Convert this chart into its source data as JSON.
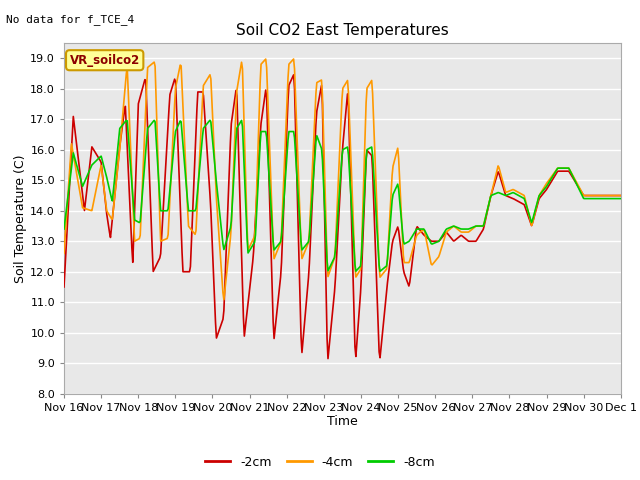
{
  "title": "Soil CO2 East Temperatures",
  "top_left_note": "No data for f_TCE_4",
  "xlabel": "Time",
  "ylabel": "Soil Temperature (C)",
  "ylim": [
    8.0,
    19.5
  ],
  "yticks": [
    8.0,
    9.0,
    10.0,
    11.0,
    12.0,
    13.0,
    14.0,
    15.0,
    16.0,
    17.0,
    18.0,
    19.0
  ],
  "bg_color": "#ffffff",
  "plot_bg_color": "#e8e8e8",
  "grid_color": "#ffffff",
  "legend_box_label": "VR_soilco2",
  "legend_box_color": "#ffff99",
  "legend_box_border": "#cc9900",
  "colors": {
    "-2cm": "#cc0000",
    "-4cm": "#ff9900",
    "-8cm": "#00cc00"
  },
  "line_width": 1.2,
  "xtick_labels": [
    "Nov 16",
    "Nov 17",
    "Nov 18",
    "Nov 19",
    "Nov 20",
    "Nov 21",
    "Nov 22",
    "Nov 23",
    "Nov 24",
    "Nov 25",
    "Nov 26",
    "Nov 27",
    "Nov 28",
    "Nov 29",
    "Nov 30",
    "Dec 1"
  ]
}
